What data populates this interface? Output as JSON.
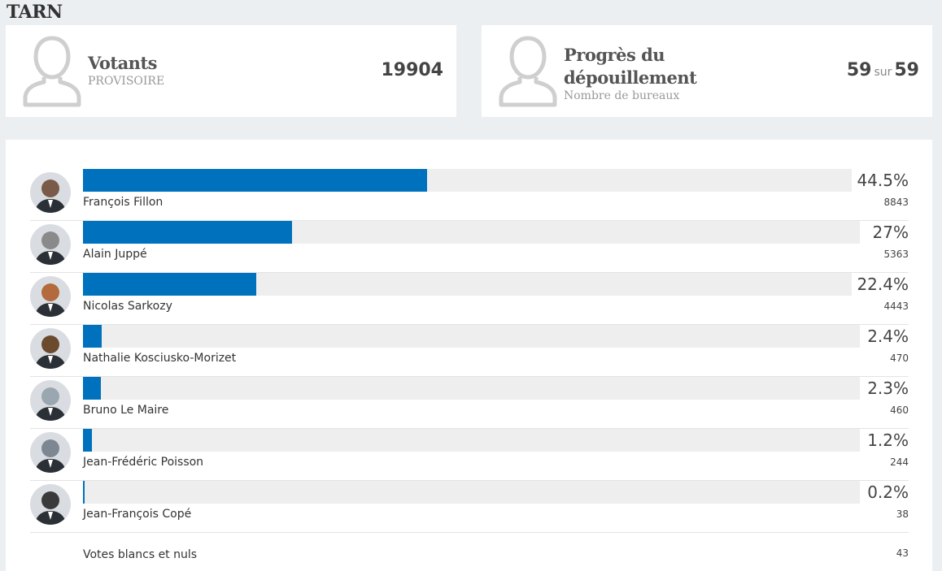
{
  "region": "TARN",
  "votants": {
    "title": "Votants",
    "subtitle": "PROVISOIRE",
    "value": "19904"
  },
  "progress": {
    "title_line1": "Progrès du",
    "title_line2": "dépouillement",
    "subtitle": "Nombre de bureaux",
    "done": "59",
    "sur": "sur",
    "total": "59"
  },
  "candidates": [
    {
      "name": "François Fillon",
      "percent_label": "44.5%",
      "percent": 44.5,
      "votes": "8843",
      "avatar_color": "#7a5a48"
    },
    {
      "name": "Alain Juppé",
      "percent_label": "27%",
      "percent": 27,
      "votes": "5363",
      "avatar_color": "#8a8a8a"
    },
    {
      "name": "Nicolas Sarkozy",
      "percent_label": "22.4%",
      "percent": 22.4,
      "votes": "4443",
      "avatar_color": "#b36a3c"
    },
    {
      "name": "Nathalie Kosciusko-Morizet",
      "percent_label": "2.4%",
      "percent": 2.4,
      "votes": "470",
      "avatar_color": "#6b4a2e"
    },
    {
      "name": "Bruno Le Maire",
      "percent_label": "2.3%",
      "percent": 2.3,
      "votes": "460",
      "avatar_color": "#9aa6b0"
    },
    {
      "name": "Jean-Frédéric Poisson",
      "percent_label": "1.2%",
      "percent": 1.2,
      "votes": "244",
      "avatar_color": "#7d8791"
    },
    {
      "name": "Jean-François Copé",
      "percent_label": "0.2%",
      "percent": 0.2,
      "votes": "38",
      "avatar_color": "#3a3a3a"
    }
  ],
  "blank": {
    "label": "Votes blancs et nuls",
    "count": "43"
  },
  "colors": {
    "bar": "#0071bd",
    "track": "#eeeeee"
  }
}
